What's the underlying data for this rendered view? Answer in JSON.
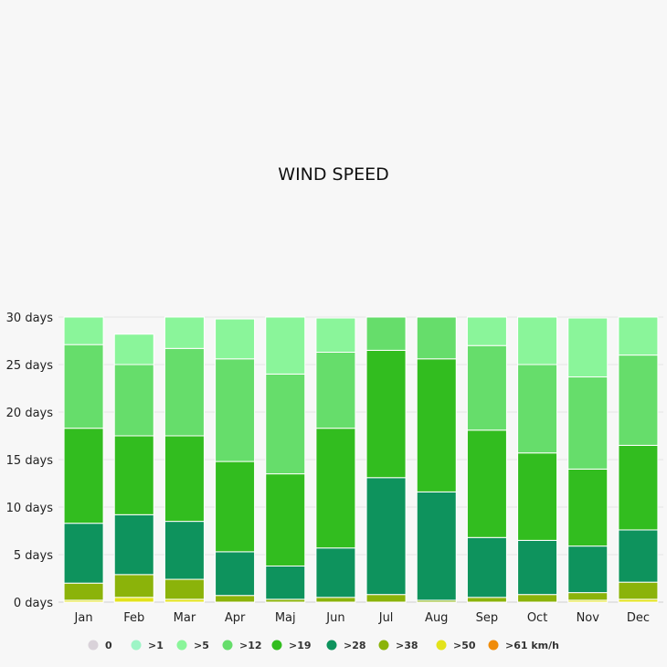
{
  "chart_data": {
    "type": "bar",
    "stacked": true,
    "title": "WIND SPEED",
    "xlabel": "",
    "ylabel": "",
    "ylim": [
      0,
      30
    ],
    "yticks": [
      "0 days",
      "5 days",
      "10 days",
      "15 days",
      "20 days",
      "25 days",
      "30 days"
    ],
    "categories": [
      "Jan",
      "Feb",
      "Mar",
      "Apr",
      "Maj",
      "Jun",
      "Jul",
      "Aug",
      "Sep",
      "Oct",
      "Nov",
      "Dec"
    ],
    "legend_position": "bottom",
    "series": [
      {
        "name": "0",
        "color": "#d9d2d9",
        "values": [
          0,
          0,
          0,
          0,
          0,
          0,
          0,
          0,
          0,
          0,
          0,
          0
        ]
      },
      {
        "name": ">1",
        "color": "#9ef5c6",
        "values": [
          0,
          0,
          0,
          0,
          0,
          0,
          0,
          0,
          0,
          0,
          0,
          0
        ]
      },
      {
        "name": ">5",
        "color": "#8af59a",
        "values": [
          2.9,
          3.2,
          3.3,
          4.2,
          6.0,
          3.6,
          0,
          0,
          3.0,
          5.0,
          6.2,
          4.0
        ]
      },
      {
        "name": ">12",
        "color": "#66dd6b",
        "values": [
          8.8,
          7.5,
          9.2,
          10.8,
          10.5,
          8.0,
          3.5,
          4.4,
          8.9,
          9.3,
          9.7,
          9.5
        ]
      },
      {
        "name": ">19",
        "color": "#32bd1f",
        "values": [
          10.0,
          8.3,
          9.0,
          9.5,
          9.7,
          12.6,
          13.4,
          14.0,
          11.3,
          9.2,
          8.1,
          8.9
        ]
      },
      {
        "name": ">28",
        "color": "#0e935d",
        "values": [
          6.3,
          6.3,
          6.1,
          4.6,
          3.5,
          5.2,
          12.3,
          11.4,
          6.3,
          5.7,
          4.9,
          5.5
        ]
      },
      {
        "name": ">38",
        "color": "#8bb30a",
        "values": [
          1.8,
          2.4,
          2.1,
          0.7,
          0.3,
          0.5,
          0.8,
          0.2,
          0.5,
          0.8,
          0.8,
          1.8
        ]
      },
      {
        "name": ">50",
        "color": "#e3e31b",
        "values": [
          0.2,
          0.5,
          0.3,
          0,
          0,
          0,
          0,
          0,
          0,
          0,
          0.2,
          0.3
        ]
      },
      {
        "name": ">61 km/h",
        "color": "#f08c0a",
        "values": [
          0,
          0,
          0,
          0,
          0,
          0,
          0,
          0,
          0,
          0,
          0,
          0
        ]
      }
    ]
  }
}
